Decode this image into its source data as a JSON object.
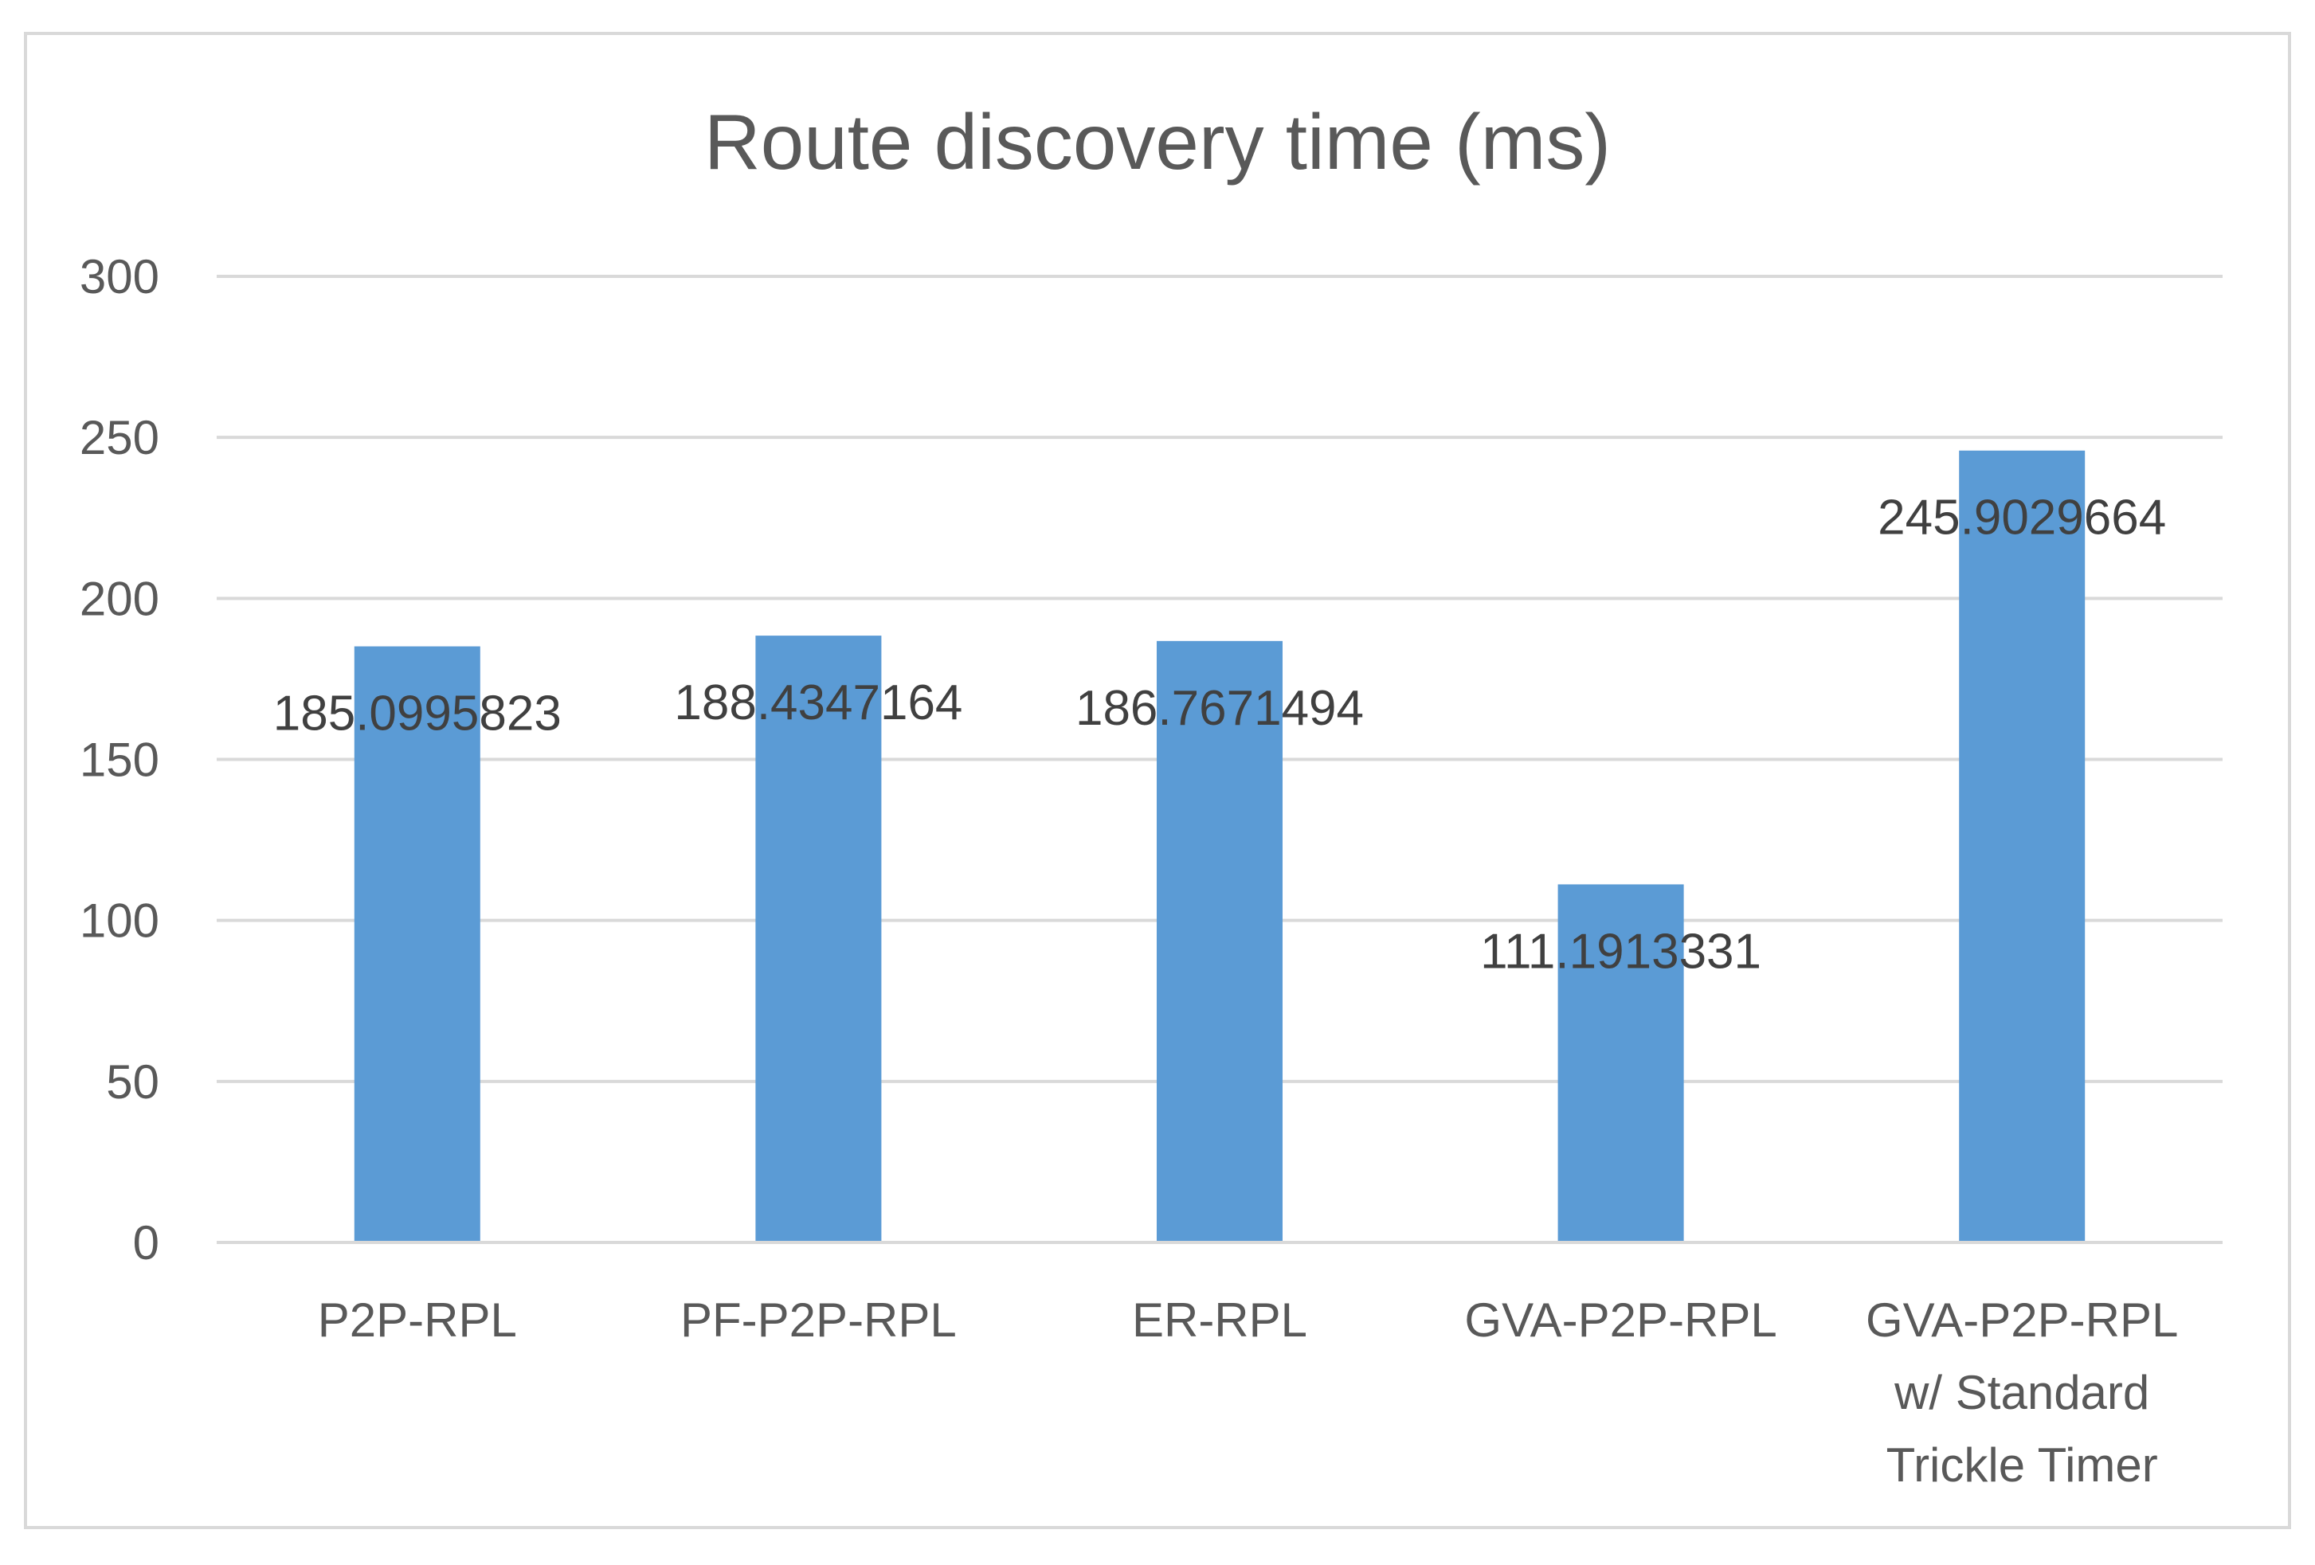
{
  "chart_data": {
    "type": "bar",
    "title": "Route discovery time (ms)",
    "xlabel": "",
    "ylabel": "",
    "categories": [
      [
        "P2P-RPL"
      ],
      [
        "PF-P2P-RPL"
      ],
      [
        "ER-RPL"
      ],
      [
        "GVA-P2P-RPL"
      ],
      [
        "GVA-P2P-RPL",
        "w/ Standard",
        "Trickle Timer"
      ]
    ],
    "values": [
      185.0995823,
      188.4347164,
      186.7671494,
      111.1913331,
      245.9029664
    ],
    "data_labels": [
      "185.0995823",
      "188.4347164",
      "186.7671494",
      "111.1913331",
      "245.9029664"
    ],
    "ylim": [
      0,
      300
    ],
    "yticks": [
      0,
      50,
      100,
      150,
      200,
      250,
      300
    ],
    "grid": true,
    "legend": "none",
    "colors": {
      "bar": "#5b9bd5",
      "grid": "#d9d9d9",
      "axis": "#d9d9d9",
      "text": "#595959",
      "label": "#404040",
      "frame": "#d9d9d9"
    }
  }
}
